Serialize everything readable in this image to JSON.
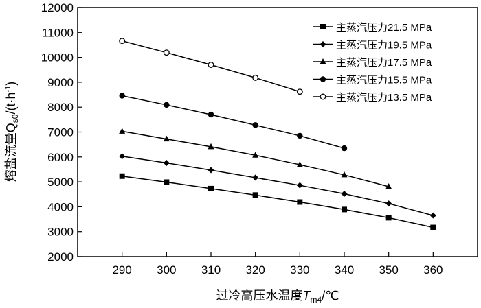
{
  "chart_data": {
    "type": "line",
    "xlabel_prefix": "过冷高压水温度",
    "xlabel_var": "T",
    "xlabel_sub": "m4",
    "xlabel_suffix": "/℃",
    "ylabel_prefix": "熔盐流量Q",
    "ylabel_sub": "s0",
    "ylabel_unit": "/(t·h",
    "ylabel_sup": "-1",
    "ylabel_close": ")",
    "xlim": [
      280,
      370
    ],
    "ylim": [
      2000,
      12000
    ],
    "xticks": [
      290,
      300,
      310,
      320,
      330,
      340,
      350,
      360
    ],
    "yticks": [
      2000,
      3000,
      4000,
      5000,
      6000,
      7000,
      8000,
      9000,
      10000,
      11000,
      12000
    ],
    "grid": false,
    "legend_position": "top-right",
    "series": [
      {
        "name": "主蒸汽压力21.5 MPa",
        "marker": "square",
        "x": [
          290,
          300,
          310,
          320,
          330,
          340,
          350,
          360
        ],
        "values": [
          5230,
          4990,
          4730,
          4470,
          4190,
          3890,
          3560,
          3170
        ]
      },
      {
        "name": "主蒸汽压力19.5 MPa",
        "marker": "diamond",
        "x": [
          290,
          300,
          310,
          320,
          330,
          340,
          350,
          360
        ],
        "values": [
          6030,
          5760,
          5470,
          5170,
          4860,
          4520,
          4130,
          3650
        ]
      },
      {
        "name": "主蒸汽压力17.5 MPa",
        "marker": "triangle",
        "x": [
          290,
          300,
          310,
          320,
          330,
          340,
          350
        ],
        "values": [
          7030,
          6720,
          6410,
          6070,
          5690,
          5280,
          4810
        ]
      },
      {
        "name": "主蒸汽压力15.5 MPa",
        "marker": "circle",
        "x": [
          290,
          300,
          310,
          320,
          330,
          340
        ],
        "values": [
          8460,
          8090,
          7700,
          7280,
          6850,
          6350
        ]
      },
      {
        "name": "主蒸汽压力13.5 MPa",
        "marker": "open-circle",
        "x": [
          290,
          300,
          310,
          320,
          330
        ],
        "values": [
          10660,
          10190,
          9700,
          9180,
          8620
        ]
      }
    ]
  }
}
